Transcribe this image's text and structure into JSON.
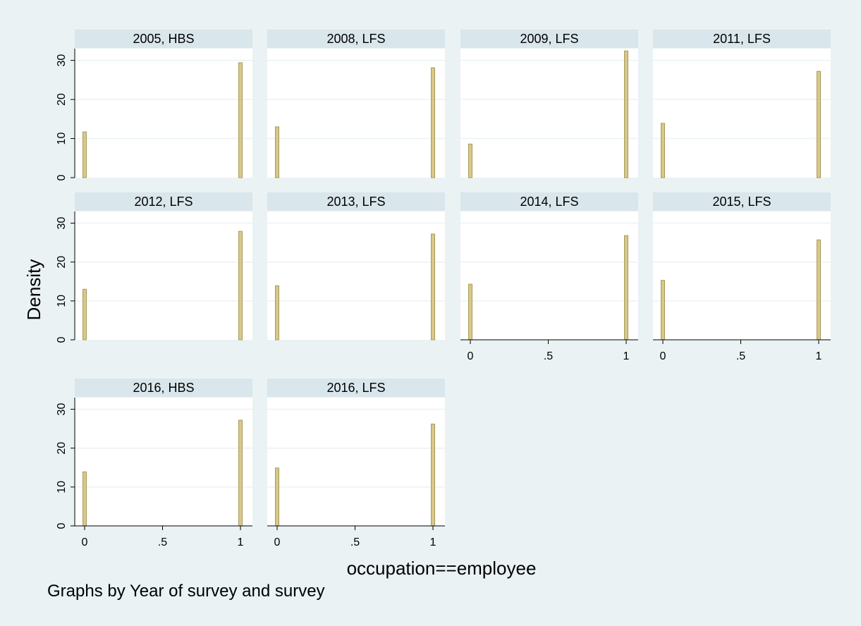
{
  "chart_data": {
    "type": "bar",
    "subtype": "histogram-by-group",
    "ylabel": "Density",
    "xlabel": "occupation==employee",
    "note": "Graphs by Year of survey and survey",
    "xlim": [
      0,
      1
    ],
    "ylim": [
      0,
      33
    ],
    "x_ticks": [
      {
        "value": 0,
        "label": "0"
      },
      {
        "value": 0.5,
        "label": ".5"
      },
      {
        "value": 1,
        "label": "1"
      }
    ],
    "y_ticks": [
      {
        "value": 0,
        "label": "0"
      },
      {
        "value": 10,
        "label": "10"
      },
      {
        "value": 20,
        "label": "20"
      },
      {
        "value": 30,
        "label": "30"
      }
    ],
    "grid": true,
    "colors": {
      "background": "#eaf2f3",
      "plot_region": "#ffffff",
      "header": "#d9e6eb",
      "bar_fill": "#d8c98a",
      "bar_edge": "#a99a57",
      "gridline": "#eaf2f3",
      "axis": "#000000"
    },
    "panels": [
      {
        "title": "2005, HBS",
        "x": [
          0,
          1
        ],
        "values": [
          11.7,
          29.4
        ],
        "show_x_axis": false,
        "show_y_axis": true
      },
      {
        "title": "2008, LFS",
        "x": [
          0,
          1
        ],
        "values": [
          13.0,
          28.1
        ],
        "show_x_axis": false,
        "show_y_axis": false
      },
      {
        "title": "2009, LFS",
        "x": [
          0,
          1
        ],
        "values": [
          8.6,
          32.4
        ],
        "show_x_axis": false,
        "show_y_axis": false
      },
      {
        "title": "2011, LFS",
        "x": [
          0,
          1
        ],
        "values": [
          13.9,
          27.2
        ],
        "show_x_axis": false,
        "show_y_axis": false
      },
      {
        "title": "2012, LFS",
        "x": [
          0,
          1
        ],
        "values": [
          13.0,
          27.9
        ],
        "show_x_axis": false,
        "show_y_axis": true
      },
      {
        "title": "2013, LFS",
        "x": [
          0,
          1
        ],
        "values": [
          13.9,
          27.2
        ],
        "show_x_axis": false,
        "show_y_axis": false
      },
      {
        "title": "2014, LFS",
        "x": [
          0,
          1
        ],
        "values": [
          14.3,
          26.8
        ],
        "show_x_axis": true,
        "show_y_axis": false
      },
      {
        "title": "2015, LFS",
        "x": [
          0,
          1
        ],
        "values": [
          15.3,
          25.7
        ],
        "show_x_axis": true,
        "show_y_axis": false
      },
      {
        "title": "2016, HBS",
        "x": [
          0,
          1
        ],
        "values": [
          13.9,
          27.2
        ],
        "show_x_axis": true,
        "show_y_axis": true
      },
      {
        "title": "2016, LFS",
        "x": [
          0,
          1
        ],
        "values": [
          14.9,
          26.2
        ],
        "show_x_axis": true,
        "show_y_axis": false
      }
    ]
  }
}
